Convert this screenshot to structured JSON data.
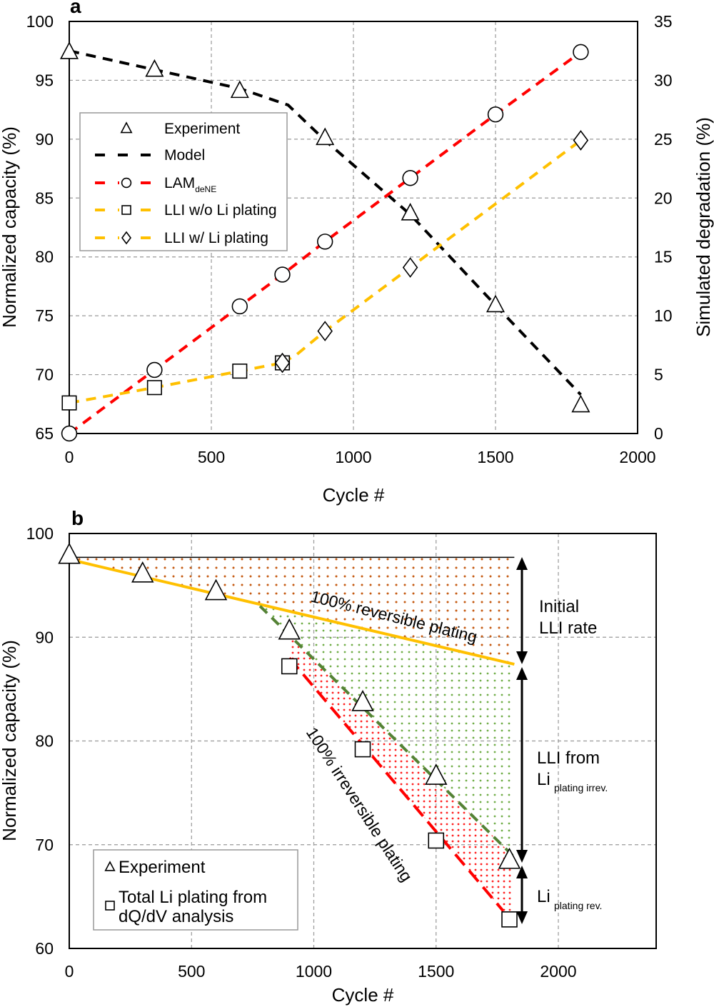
{
  "chart_data": [
    {
      "panel_label": "a",
      "type": "line",
      "xlabel": "Cycle #",
      "ylabel": "Normalized capacity (%)",
      "y2label": "Simulated degradation (%)",
      "xlim": [
        0,
        2000
      ],
      "ylim": [
        65,
        100
      ],
      "y2lim": [
        0,
        35
      ],
      "xticks": [
        "0",
        "500",
        "1000",
        "1500",
        "2000"
      ],
      "yticks": [
        "65",
        "70",
        "75",
        "80",
        "85",
        "90",
        "95",
        "100"
      ],
      "y2ticks": [
        "0",
        "5",
        "10",
        "15",
        "20",
        "25",
        "30",
        "35"
      ],
      "grid": true,
      "legend_position": "left-middle",
      "series": [
        {
          "name": "Experiment",
          "axis": "left",
          "marker": "triangle",
          "line": "none",
          "x": [
            0,
            300,
            600,
            900,
            1200,
            1500,
            1800
          ],
          "y": [
            97.4,
            95.9,
            94.1,
            90.1,
            83.7,
            75.9,
            67.4
          ]
        },
        {
          "name": "Model",
          "axis": "left",
          "marker": "none",
          "line": "dashed",
          "color": "#000000",
          "x": [
            0,
            300,
            600,
            770,
            900,
            1200,
            1500,
            1800
          ],
          "y": [
            97.5,
            95.9,
            94.3,
            92.9,
            89.9,
            83.6,
            75.9,
            68.3
          ]
        },
        {
          "name": "LAM",
          "name_sub": "deNE",
          "axis": "right",
          "marker": "circle",
          "line": "dashed",
          "color": "#ff0000",
          "x": [
            0,
            300,
            600,
            750,
            900,
            1200,
            1500,
            1800
          ],
          "y": [
            0,
            5.4,
            10.8,
            13.5,
            16.3,
            21.7,
            27.1,
            32.4
          ]
        },
        {
          "name": "LLI w/o Li plating",
          "axis": "right",
          "marker": "square",
          "line": "dashed",
          "color": "#ffc000",
          "x": [
            0,
            300,
            600,
            750
          ],
          "y": [
            2.6,
            3.9,
            5.3,
            6.0
          ]
        },
        {
          "name": "LLI w/ Li plating",
          "axis": "right",
          "marker": "diamond",
          "line": "dashed",
          "color": "#ffc000",
          "x": [
            750,
            900,
            1200,
            1800
          ],
          "y": [
            6.0,
            8.7,
            14.1,
            24.9
          ],
          "line_x": [
            750,
            800,
            900,
            1200,
            1500,
            1800
          ],
          "line_y": [
            6.0,
            6.7,
            8.7,
            14.1,
            19.5,
            24.9
          ]
        }
      ]
    },
    {
      "panel_label": "b",
      "type": "line",
      "xlabel": "Cycle #",
      "ylabel": "Normalized capacity (%)",
      "xlim": [
        0,
        2400
      ],
      "ylim": [
        60,
        100
      ],
      "xticks": [
        "0",
        "500",
        "1000",
        "1500",
        "2000"
      ],
      "yticks": [
        "60",
        "70",
        "80",
        "90",
        "100"
      ],
      "grid": true,
      "legend_position": "bottom-left",
      "legend": {
        "experiment": "Experiment",
        "plating_line1": "Total Li plating from",
        "plating_line2": "dQ/dV analysis"
      },
      "series": [
        {
          "name": "Experiment",
          "marker": "triangle",
          "x": [
            0,
            300,
            600,
            900,
            1200,
            1500,
            1800
          ],
          "y": [
            97.9,
            96.1,
            94.4,
            90.6,
            83.7,
            76.6,
            68.5
          ]
        },
        {
          "name": "Total Li plating from dQ/dV analysis",
          "marker": "square",
          "x": [
            900,
            1200,
            1500,
            1800
          ],
          "y": [
            87.2,
            79.2,
            70.4,
            62.8
          ]
        }
      ],
      "lines": {
        "initial_capacity": {
          "x": [
            0,
            1820
          ],
          "y": [
            97.7,
            97.7
          ],
          "color": "#000000"
        },
        "reversible_plating": {
          "x": [
            0,
            1820
          ],
          "y": [
            97.5,
            87.4
          ],
          "color": "#ffc000"
        },
        "model_fit": {
          "x": [
            780,
            1820
          ],
          "y": [
            93.0,
            68.8
          ],
          "color": "#548235"
        },
        "irreversible_plating": {
          "x": [
            900,
            1775
          ],
          "y": [
            88.0,
            63.6
          ],
          "color": "#ff0000"
        }
      },
      "regions": {
        "reversible": "#c55a11",
        "irrev_llI": "#70ad47",
        "rev_plating": "#ff0000"
      },
      "annotations": {
        "reversible_label": "100% reversible plating",
        "irreversible_label": "100% irreversible plating",
        "initial_line1": "Initial",
        "initial_line2": "LLI rate",
        "irrev_line1": "LLI from",
        "irrev_main": "Li",
        "irrev_sub": "plating irrev.",
        "rev_main": "Li",
        "rev_sub": "plating rev."
      }
    }
  ]
}
